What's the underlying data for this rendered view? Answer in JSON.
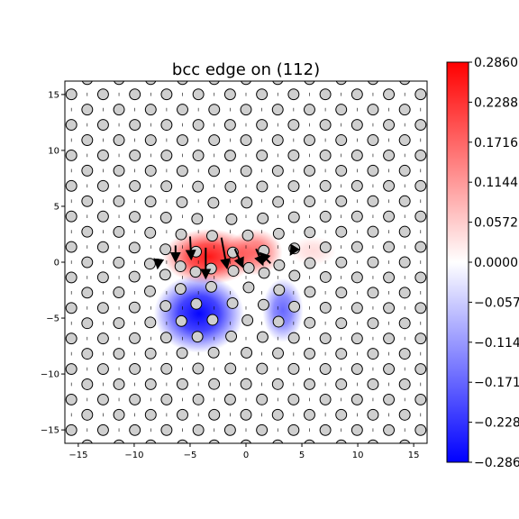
{
  "chart_data": {
    "type": "heatmap",
    "title": "bcc edge on (112)",
    "xlim": [
      -16.2,
      16.2
    ],
    "ylim": [
      -16.2,
      16.2
    ],
    "x_ticks": [
      -15,
      -10,
      -5,
      0,
      5,
      10,
      15
    ],
    "y_ticks": [
      -15,
      -10,
      -5,
      0,
      5,
      10,
      15
    ],
    "x_tick_labels": [
      "−15",
      "−10",
      "−5",
      "0",
      "5",
      "10",
      "15"
    ],
    "y_tick_labels": [
      "−15",
      "−10",
      "−5",
      "0",
      "5",
      "10",
      "15"
    ],
    "colormap": "bwr",
    "colorbar": {
      "min": -0.286,
      "max": 0.286,
      "ticks": [
        0.286,
        0.2288,
        0.1716,
        0.1144,
        0.0572,
        0.0,
        -0.0572,
        -0.1144,
        -0.1716,
        -0.2288,
        -0.286
      ],
      "tick_labels": [
        "0.2860",
        "0.2288",
        "0.1716",
        "0.1144",
        "0.0572",
        "0.0000",
        "−0.0572",
        "−0.1144",
        "−0.1716",
        "−0.2288",
        "−0.2860"
      ]
    },
    "lattice": {
      "row_spacing": 1.365,
      "col_spacing": 2.84,
      "rows": 25,
      "stagger": "alternating",
      "atom_radius": 0.48,
      "atom_color": "#cfcfcf"
    },
    "strain_regions": [
      {
        "sign": "positive",
        "center": [
          -3.3,
          0.5
        ],
        "sigma": [
          3.2,
          1.9
        ],
        "peak": 0.26
      },
      {
        "sign": "positive",
        "center": [
          0.8,
          0.9
        ],
        "sigma": [
          1.9,
          1.6
        ],
        "peak": 0.17
      },
      {
        "sign": "positive",
        "center": [
          6.0,
          1.0
        ],
        "sigma": [
          1.6,
          1.0
        ],
        "peak": 0.04
      },
      {
        "sign": "negative",
        "center": [
          -4.2,
          -4.6
        ],
        "sigma": [
          3.1,
          2.7
        ],
        "peak": -0.28
      },
      {
        "sign": "negative",
        "center": [
          3.3,
          -4.3
        ],
        "sigma": [
          1.4,
          2.2
        ],
        "peak": -0.17
      }
    ],
    "displacement_arrows": [
      {
        "x": -6.3,
        "y": 1.5,
        "dx": 0.0,
        "dy": -1.4
      },
      {
        "x": -5.0,
        "y": 2.3,
        "dx": 0.1,
        "dy": -2.0
      },
      {
        "x": -3.6,
        "y": 1.3,
        "dx": 0.0,
        "dy": -2.7
      },
      {
        "x": -2.2,
        "y": 2.2,
        "dx": 0.5,
        "dy": -2.7
      },
      {
        "x": -1.0,
        "y": 1.2,
        "dx": 0.7,
        "dy": -1.6
      },
      {
        "x": 0.9,
        "y": 1.2,
        "dx": 0.6,
        "dy": -1.4
      },
      {
        "x": 2.2,
        "y": -0.1,
        "dx": -0.9,
        "dy": 0.9
      },
      {
        "x": -7.8,
        "y": 0.3,
        "dx": -0.1,
        "dy": -0.8
      },
      {
        "x": 4.3,
        "y": 1.2,
        "dx": -0.3,
        "dy": -0.5
      }
    ]
  }
}
